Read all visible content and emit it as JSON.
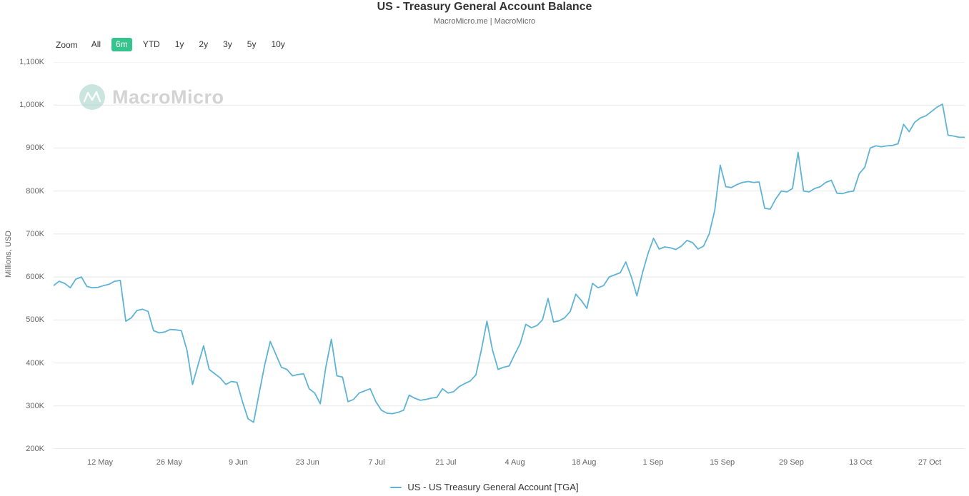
{
  "header": {
    "title": "US - Treasury General Account Balance",
    "subtitle": "MacroMicro.me | MacroMicro"
  },
  "zoom": {
    "label": "Zoom",
    "selected": "6m",
    "selected_bg": "#35c48e",
    "buttons": [
      {
        "label": "All"
      },
      {
        "label": "6m"
      },
      {
        "label": "YTD"
      },
      {
        "label": "1y"
      },
      {
        "label": "2y"
      },
      {
        "label": "3y"
      },
      {
        "label": "5y"
      },
      {
        "label": "10y"
      }
    ]
  },
  "watermark": {
    "text": "MacroMicro",
    "logo": "macromicro-logo-icon"
  },
  "legend": {
    "items": [
      {
        "label": "US - US Treasury General Account [TGA]",
        "color": "#5fb3d4"
      }
    ]
  },
  "chart_data": {
    "type": "line",
    "title": "US - Treasury General Account Balance",
    "subtitle": "MacroMicro.me | MacroMicro",
    "xlabel": "",
    "ylabel": "Millions, USD",
    "unit": "K (thousands of millions USD)",
    "ylim": [
      200,
      1100
    ],
    "grid": true,
    "legend_position": "bottom",
    "ytick_labels": [
      "1,100K",
      "1,000K",
      "900K",
      "800K",
      "700K",
      "600K",
      "500K",
      "400K",
      "300K",
      "200K"
    ],
    "ytick_values": [
      1100,
      1000,
      900,
      800,
      700,
      600,
      500,
      400,
      300,
      200
    ],
    "xtick_labels": [
      "12 May",
      "26 May",
      "9 Jun",
      "23 Jun",
      "7 Jul",
      "21 Jul",
      "4 Aug",
      "18 Aug",
      "1 Sep",
      "15 Sep",
      "29 Sep",
      "13 Oct",
      "27 Oct"
    ],
    "x_range": [
      "early May",
      "early Nov"
    ],
    "series": [
      {
        "name": "US - US Treasury General Account [TGA]",
        "color": "#5fb3d4",
        "values": [
          580,
          590,
          585,
          575,
          595,
          600,
          578,
          575,
          576,
          580,
          583,
          590,
          592,
          497,
          505,
          522,
          525,
          520,
          475,
          470,
          472,
          478,
          477,
          475,
          430,
          350,
          395,
          440,
          385,
          375,
          365,
          350,
          357,
          355,
          310,
          270,
          262,
          330,
          395,
          450,
          420,
          390,
          385,
          370,
          373,
          375,
          340,
          330,
          305,
          390,
          455,
          370,
          367,
          310,
          315,
          330,
          335,
          340,
          310,
          290,
          283,
          282,
          285,
          290,
          325,
          318,
          313,
          315,
          318,
          320,
          340,
          330,
          333,
          345,
          352,
          358,
          372,
          430,
          497,
          430,
          385,
          390,
          393,
          420,
          445,
          490,
          482,
          487,
          500,
          550,
          495,
          498,
          505,
          520,
          560,
          545,
          527,
          585,
          575,
          580,
          600,
          605,
          610,
          635,
          600,
          556,
          610,
          655,
          690,
          665,
          670,
          668,
          664,
          672,
          685,
          680,
          665,
          672,
          700,
          755,
          860,
          810,
          808,
          815,
          820,
          822,
          820,
          821,
          760,
          758,
          782,
          800,
          798,
          806,
          890,
          800,
          798,
          806,
          810,
          820,
          825,
          795,
          794,
          798,
          800,
          840,
          855,
          900,
          905,
          903,
          905,
          906,
          910,
          955,
          938,
          960,
          970,
          975,
          985,
          995,
          1002,
          930,
          928,
          925,
          925
        ]
      }
    ]
  }
}
